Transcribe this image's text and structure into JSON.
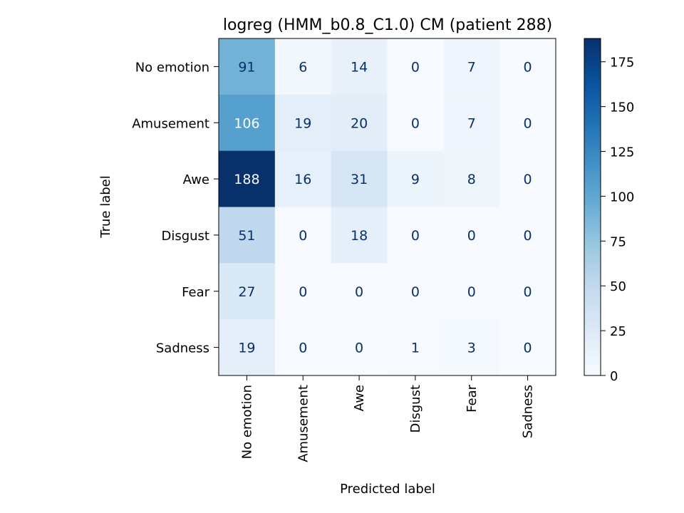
{
  "chart_data": {
    "type": "heatmap",
    "title": "logreg (HMM_b0.8_C1.0) CM (patient 288)",
    "xlabel": "Predicted label",
    "ylabel": "True label",
    "x_categories": [
      "No emotion",
      "Amusement",
      "Awe",
      "Disgust",
      "Fear",
      "Sadness"
    ],
    "y_categories": [
      "No emotion",
      "Amusement",
      "Awe",
      "Disgust",
      "Fear",
      "Sadness"
    ],
    "matrix": [
      [
        91,
        6,
        14,
        0,
        7,
        0
      ],
      [
        106,
        19,
        20,
        0,
        7,
        0
      ],
      [
        188,
        16,
        31,
        9,
        8,
        0
      ],
      [
        51,
        0,
        18,
        0,
        0,
        0
      ],
      [
        27,
        0,
        0,
        0,
        0,
        0
      ],
      [
        19,
        0,
        0,
        1,
        3,
        0
      ]
    ],
    "colormap": "Blues",
    "color_range": [
      0,
      188
    ],
    "colorbar_ticks": [
      0,
      25,
      50,
      75,
      100,
      125,
      150,
      175
    ],
    "colors": {
      "low": "#f7fbff",
      "high": "#08306b",
      "text_dark_cell": "#f7fbff",
      "text_light_cell": "#08306b"
    }
  }
}
